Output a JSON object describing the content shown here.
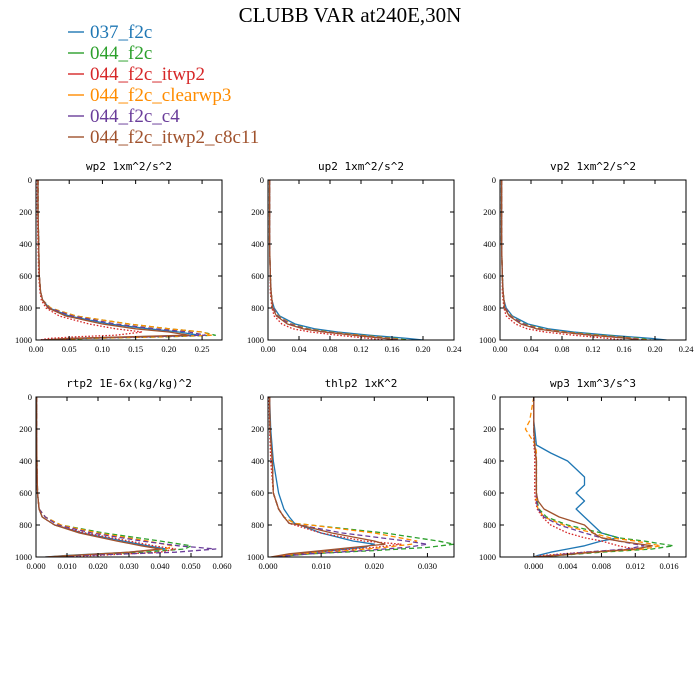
{
  "figure": {
    "title": "CLUBB VAR at240E,30N"
  },
  "chart_data": {
    "type": "line",
    "y_axis": {
      "ylim": [
        0,
        1000
      ],
      "inverted": true,
      "ticks": [
        0,
        200,
        400,
        600,
        800,
        1000
      ]
    },
    "legend": {
      "placement": "top-left",
      "entries": [
        {
          "name": "037_f2c",
          "color": "#1f77b4",
          "style": "solid"
        },
        {
          "name": "044_f2c",
          "color": "#2ca02c",
          "style": "dashed"
        },
        {
          "name": "044_f2c_itwp2",
          "color": "#d62728",
          "style": "dotted"
        },
        {
          "name": "044_f2c_clearwp3",
          "color": "#ff8c00",
          "style": "dashed"
        },
        {
          "name": "044_f2c_c4",
          "color": "#6a3d9a",
          "style": "dashed"
        },
        {
          "name": "044_f2c_itwp2_c8c11",
          "color": "#a0522d",
          "style": "solid"
        }
      ]
    },
    "panels": [
      {
        "title": "wp2   1xm^2/s^2",
        "xlim": [
          0,
          0.28
        ],
        "xticks": [
          0,
          0.05,
          0.1,
          0.15,
          0.2,
          0.25
        ],
        "xtick_labels": [
          "0.00",
          "0.05",
          "0.10",
          "0.15",
          "0.20",
          "0.25"
        ],
        "y": [
          0,
          200,
          400,
          600,
          700,
          750,
          800,
          850,
          900,
          930,
          950,
          970,
          980,
          990,
          1000
        ],
        "series": [
          [
            0.003,
            0.003,
            0.004,
            0.005,
            0.007,
            0.01,
            0.02,
            0.05,
            0.11,
            0.17,
            0.215,
            0.245,
            0.15,
            0.05,
            0.01
          ],
          [
            0.003,
            0.003,
            0.004,
            0.005,
            0.007,
            0.01,
            0.022,
            0.06,
            0.14,
            0.2,
            0.25,
            0.27,
            0.2,
            0.08,
            0.01
          ],
          [
            0.002,
            0.002,
            0.003,
            0.004,
            0.006,
            0.008,
            0.015,
            0.035,
            0.08,
            0.12,
            0.16,
            0.12,
            0.06,
            0.02,
            0.005
          ],
          [
            0.003,
            0.003,
            0.004,
            0.005,
            0.007,
            0.01,
            0.022,
            0.06,
            0.14,
            0.2,
            0.25,
            0.265,
            0.19,
            0.07,
            0.01
          ],
          [
            0.003,
            0.003,
            0.004,
            0.005,
            0.007,
            0.01,
            0.02,
            0.055,
            0.12,
            0.18,
            0.23,
            0.255,
            0.17,
            0.06,
            0.01
          ],
          [
            0.003,
            0.003,
            0.004,
            0.005,
            0.007,
            0.01,
            0.018,
            0.045,
            0.1,
            0.15,
            0.2,
            0.23,
            0.14,
            0.05,
            0.01
          ]
        ]
      },
      {
        "title": "up2   1xm^2/s^2",
        "xlim": [
          0,
          0.24
        ],
        "xticks": [
          0,
          0.04,
          0.08,
          0.12,
          0.16,
          0.2,
          0.24
        ],
        "xtick_labels": [
          "0.00",
          "0.04",
          "0.08",
          "0.12",
          "0.16",
          "0.20",
          "0.24"
        ],
        "y": [
          0,
          200,
          400,
          600,
          700,
          750,
          800,
          850,
          900,
          930,
          950,
          970,
          990,
          1000
        ],
        "series": [
          [
            0.002,
            0.002,
            0.002,
            0.003,
            0.004,
            0.005,
            0.008,
            0.015,
            0.035,
            0.06,
            0.09,
            0.13,
            0.18,
            0.2
          ],
          [
            0.002,
            0.002,
            0.002,
            0.003,
            0.004,
            0.005,
            0.007,
            0.013,
            0.03,
            0.052,
            0.08,
            0.12,
            0.165,
            0.18
          ],
          [
            0.002,
            0.002,
            0.002,
            0.003,
            0.003,
            0.004,
            0.005,
            0.008,
            0.018,
            0.032,
            0.055,
            0.09,
            0.13,
            0.15
          ],
          [
            0.002,
            0.002,
            0.002,
            0.003,
            0.004,
            0.005,
            0.007,
            0.013,
            0.03,
            0.05,
            0.078,
            0.118,
            0.16,
            0.175
          ],
          [
            0.002,
            0.002,
            0.002,
            0.003,
            0.004,
            0.005,
            0.007,
            0.012,
            0.028,
            0.048,
            0.075,
            0.112,
            0.155,
            0.17
          ],
          [
            0.002,
            0.002,
            0.002,
            0.003,
            0.004,
            0.005,
            0.006,
            0.011,
            0.025,
            0.045,
            0.072,
            0.11,
            0.15,
            0.165
          ]
        ]
      },
      {
        "title": "vp2   1xm^2/s^2",
        "xlim": [
          0,
          0.24
        ],
        "xticks": [
          0,
          0.04,
          0.08,
          0.12,
          0.16,
          0.2,
          0.24
        ],
        "xtick_labels": [
          "0.00",
          "0.04",
          "0.08",
          "0.12",
          "0.16",
          "0.20",
          "0.24"
        ],
        "y": [
          0,
          200,
          400,
          600,
          700,
          750,
          800,
          850,
          900,
          930,
          950,
          970,
          990,
          1000
        ],
        "series": [
          [
            0.002,
            0.002,
            0.002,
            0.003,
            0.004,
            0.005,
            0.008,
            0.016,
            0.036,
            0.062,
            0.095,
            0.14,
            0.195,
            0.215
          ],
          [
            0.002,
            0.002,
            0.002,
            0.003,
            0.004,
            0.005,
            0.007,
            0.014,
            0.032,
            0.055,
            0.085,
            0.13,
            0.18,
            0.195
          ],
          [
            0.002,
            0.002,
            0.002,
            0.003,
            0.003,
            0.004,
            0.005,
            0.008,
            0.02,
            0.035,
            0.058,
            0.095,
            0.14,
            0.16
          ],
          [
            0.002,
            0.002,
            0.002,
            0.003,
            0.004,
            0.005,
            0.007,
            0.014,
            0.031,
            0.053,
            0.083,
            0.125,
            0.175,
            0.19
          ],
          [
            0.002,
            0.002,
            0.002,
            0.003,
            0.004,
            0.005,
            0.007,
            0.013,
            0.03,
            0.05,
            0.08,
            0.12,
            0.17,
            0.185
          ],
          [
            0.002,
            0.002,
            0.002,
            0.003,
            0.004,
            0.005,
            0.006,
            0.012,
            0.027,
            0.047,
            0.077,
            0.117,
            0.165,
            0.18
          ]
        ]
      },
      {
        "title": "rtp2   1E-6x(kg/kg)^2",
        "xlim": [
          0,
          0.06
        ],
        "xticks": [
          0,
          0.01,
          0.02,
          0.03,
          0.04,
          0.05,
          0.06
        ],
        "xtick_labels": [
          "0.000",
          "0.010",
          "0.020",
          "0.030",
          "0.040",
          "0.050",
          "0.060"
        ],
        "y": [
          0,
          200,
          400,
          600,
          700,
          750,
          800,
          850,
          900,
          930,
          950,
          970,
          990,
          1000
        ],
        "series": [
          [
            0.0002,
            0.0002,
            0.0003,
            0.0005,
            0.001,
            0.002,
            0.006,
            0.015,
            0.028,
            0.036,
            0.042,
            0.03,
            0.01,
            0.003
          ],
          [
            0.0002,
            0.0002,
            0.0003,
            0.0005,
            0.001,
            0.003,
            0.008,
            0.022,
            0.04,
            0.05,
            0.048,
            0.035,
            0.012,
            0.004
          ],
          [
            0.0002,
            0.0002,
            0.0003,
            0.0005,
            0.001,
            0.002,
            0.006,
            0.016,
            0.03,
            0.038,
            0.045,
            0.04,
            0.02,
            0.004
          ],
          [
            0.0002,
            0.0002,
            0.0003,
            0.0005,
            0.001,
            0.003,
            0.008,
            0.02,
            0.036,
            0.044,
            0.042,
            0.03,
            0.012,
            0.004
          ],
          [
            0.0002,
            0.0002,
            0.0003,
            0.0005,
            0.001,
            0.003,
            0.007,
            0.018,
            0.034,
            0.046,
            0.058,
            0.045,
            0.015,
            0.004
          ],
          [
            0.0002,
            0.0002,
            0.0003,
            0.0005,
            0.001,
            0.002,
            0.006,
            0.014,
            0.026,
            0.034,
            0.04,
            0.03,
            0.012,
            0.003
          ]
        ]
      },
      {
        "title": "thlp2   1xK^2",
        "xlim": [
          0,
          0.035
        ],
        "xticks": [
          0,
          0.01,
          0.02,
          0.03
        ],
        "xtick_labels": [
          "0.000",
          "0.010",
          "0.020",
          "0.030"
        ],
        "y": [
          0,
          200,
          400,
          600,
          700,
          750,
          790,
          800,
          850,
          900,
          920,
          940,
          960,
          980,
          1000
        ],
        "series": [
          [
            0.0003,
            0.0005,
            0.001,
            0.002,
            0.003,
            0.004,
            0.005,
            0.006,
            0.01,
            0.016,
            0.02,
            0.018,
            0.012,
            0.006,
            0.001
          ],
          [
            0.0003,
            0.0004,
            0.0008,
            0.001,
            0.002,
            0.003,
            0.005,
            0.008,
            0.022,
            0.032,
            0.035,
            0.03,
            0.02,
            0.008,
            0.001
          ],
          [
            0.0002,
            0.0003,
            0.0005,
            0.001,
            0.002,
            0.003,
            0.004,
            0.005,
            0.01,
            0.018,
            0.025,
            0.02,
            0.012,
            0.006,
            0.001
          ],
          [
            0.0003,
            0.0004,
            0.0008,
            0.001,
            0.002,
            0.003,
            0.005,
            0.008,
            0.02,
            0.028,
            0.027,
            0.022,
            0.015,
            0.006,
            0.001
          ],
          [
            0.0003,
            0.0004,
            0.0008,
            0.001,
            0.002,
            0.003,
            0.004,
            0.006,
            0.014,
            0.026,
            0.03,
            0.026,
            0.018,
            0.008,
            0.001
          ],
          [
            0.0003,
            0.0004,
            0.0008,
            0.001,
            0.002,
            0.003,
            0.004,
            0.006,
            0.012,
            0.02,
            0.022,
            0.016,
            0.01,
            0.004,
            0.0005
          ]
        ]
      },
      {
        "title": "wp3   1xm^3/s^3",
        "xlim": [
          -0.004,
          0.018
        ],
        "xticks": [
          0,
          0.004,
          0.008,
          0.012,
          0.016
        ],
        "xtick_labels": [
          "0.000",
          "0.004",
          "0.008",
          "0.012",
          "0.016"
        ],
        "y": [
          0,
          150,
          200,
          300,
          350,
          400,
          450,
          500,
          550,
          600,
          650,
          700,
          750,
          800,
          850,
          880,
          900,
          930,
          950,
          970,
          990,
          1000
        ],
        "series": [
          [
            0.0,
            0.0,
            0.0001,
            0.0003,
            0.002,
            0.004,
            0.005,
            0.006,
            0.006,
            0.005,
            0.006,
            0.005,
            0.006,
            0.007,
            0.008,
            0.01,
            0.008,
            0.006,
            0.004,
            0.002,
            0.0005,
            0.0
          ],
          [
            0.0,
            0.0,
            0.0,
            0.0001,
            0.0002,
            0.0003,
            0.0003,
            0.0003,
            0.0003,
            0.0003,
            0.0004,
            0.0006,
            0.0015,
            0.004,
            0.008,
            0.01,
            0.013,
            0.0165,
            0.014,
            0.008,
            0.003,
            0.0
          ],
          [
            0.0,
            0.0,
            0.0,
            0.0,
            0.0001,
            0.0001,
            0.0001,
            0.0001,
            0.0001,
            0.0001,
            0.0002,
            0.0004,
            0.001,
            0.002,
            0.004,
            0.006,
            0.008,
            0.01,
            0.012,
            0.006,
            0.001,
            0.0
          ],
          [
            0.0,
            -0.0005,
            -0.001,
            0.0002,
            0.0003,
            0.0003,
            0.0003,
            0.0003,
            0.0003,
            0.0003,
            0.0003,
            0.0005,
            0.0012,
            0.0035,
            0.007,
            0.009,
            0.012,
            0.015,
            0.013,
            0.007,
            0.002,
            0.0
          ],
          [
            0.0,
            0.0,
            0.0,
            0.0001,
            0.0002,
            0.0003,
            0.0003,
            0.0003,
            0.0003,
            0.0003,
            0.0003,
            0.0005,
            0.0012,
            0.003,
            0.006,
            0.008,
            0.01,
            0.013,
            0.011,
            0.006,
            0.002,
            0.0
          ],
          [
            0.0,
            0.0,
            0.0,
            0.0001,
            0.0002,
            0.0003,
            0.0003,
            0.0003,
            0.0003,
            0.0003,
            0.0005,
            0.0012,
            0.003,
            0.006,
            0.007,
            0.008,
            0.01,
            0.014,
            0.012,
            0.007,
            0.003,
            0.0
          ]
        ]
      }
    ]
  }
}
